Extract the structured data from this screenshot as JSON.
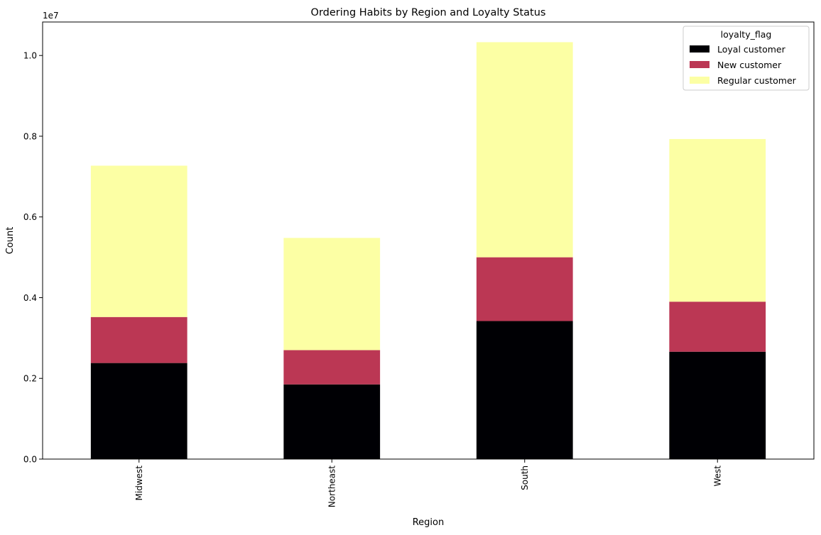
{
  "chart_data": {
    "type": "bar",
    "stacked": true,
    "title": "Ordering Habits by Region and Loyalty Status",
    "xlabel": "Region",
    "ylabel": "Count",
    "y_multiplier_label": "1e7",
    "categories": [
      "Midwest",
      "Northeast",
      "South",
      "West"
    ],
    "series": [
      {
        "name": "Loyal customer",
        "color": "#000004",
        "values": [
          2380000,
          1850000,
          3420000,
          2660000
        ]
      },
      {
        "name": "New customer",
        "color": "#bb3754",
        "values": [
          1140000,
          850000,
          1580000,
          1240000
        ]
      },
      {
        "name": "Regular customer",
        "color": "#fcffa4",
        "values": [
          3750000,
          2780000,
          5330000,
          4030000
        ]
      }
    ],
    "yticks": [
      0,
      2000000,
      4000000,
      6000000,
      8000000,
      10000000
    ],
    "ytick_labels": [
      "0.0",
      "0.2",
      "0.4",
      "0.6",
      "0.8",
      "1.0"
    ],
    "ylim": [
      0,
      10830000
    ],
    "legend": {
      "title": "loyalty_flag",
      "position": "top-right"
    },
    "grid": false
  }
}
